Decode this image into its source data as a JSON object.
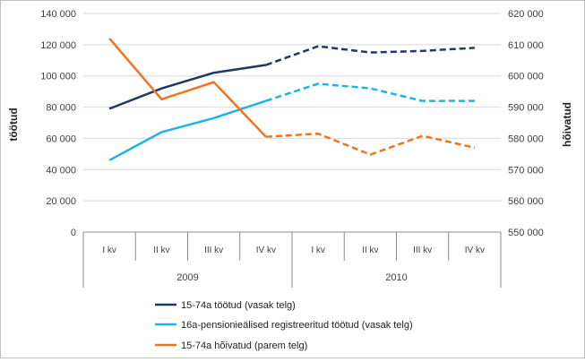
{
  "chart_data": {
    "type": "line",
    "categories": [
      "I kv",
      "II kv",
      "III kv",
      "IV kv",
      "I kv",
      "II kv",
      "III kv",
      "IV kv"
    ],
    "groups": [
      {
        "label": "2009",
        "span": 4
      },
      {
        "label": "2010",
        "span": 4
      }
    ],
    "ylabel": "töötud",
    "y2label": "hõivatud",
    "ylim": [
      0,
      140000
    ],
    "y2lim": [
      550000,
      620000
    ],
    "yticks": [
      "0",
      "20 000",
      "40 000",
      "60 000",
      "80 000",
      "100 000",
      "120 000",
      "140 000"
    ],
    "y2ticks": [
      "550 000",
      "560 000",
      "570 000",
      "580 000",
      "590 000",
      "600 000",
      "610 000",
      "620 000"
    ],
    "dashed_from_index": 3,
    "grid": true,
    "legend_position": "bottom",
    "series": [
      {
        "name": "15-74a töötud (vasak telg)",
        "axis": "left",
        "color": "#1f3864",
        "values": [
          79000,
          92000,
          102000,
          107000,
          119000,
          115000,
          116000,
          118000
        ]
      },
      {
        "name": "16a-pensionieälised registreeritud töötud (vasak telg)",
        "axis": "left",
        "color": "#1cb4e8",
        "values": [
          46000,
          64000,
          73000,
          84000,
          95000,
          92000,
          84000,
          84000
        ]
      },
      {
        "name": "15-74a hõivatud (parem telg)",
        "axis": "right",
        "color": "#f07320",
        "values": [
          612000,
          592500,
          598000,
          580500,
          581500,
          574800,
          580800,
          577000
        ]
      }
    ]
  }
}
